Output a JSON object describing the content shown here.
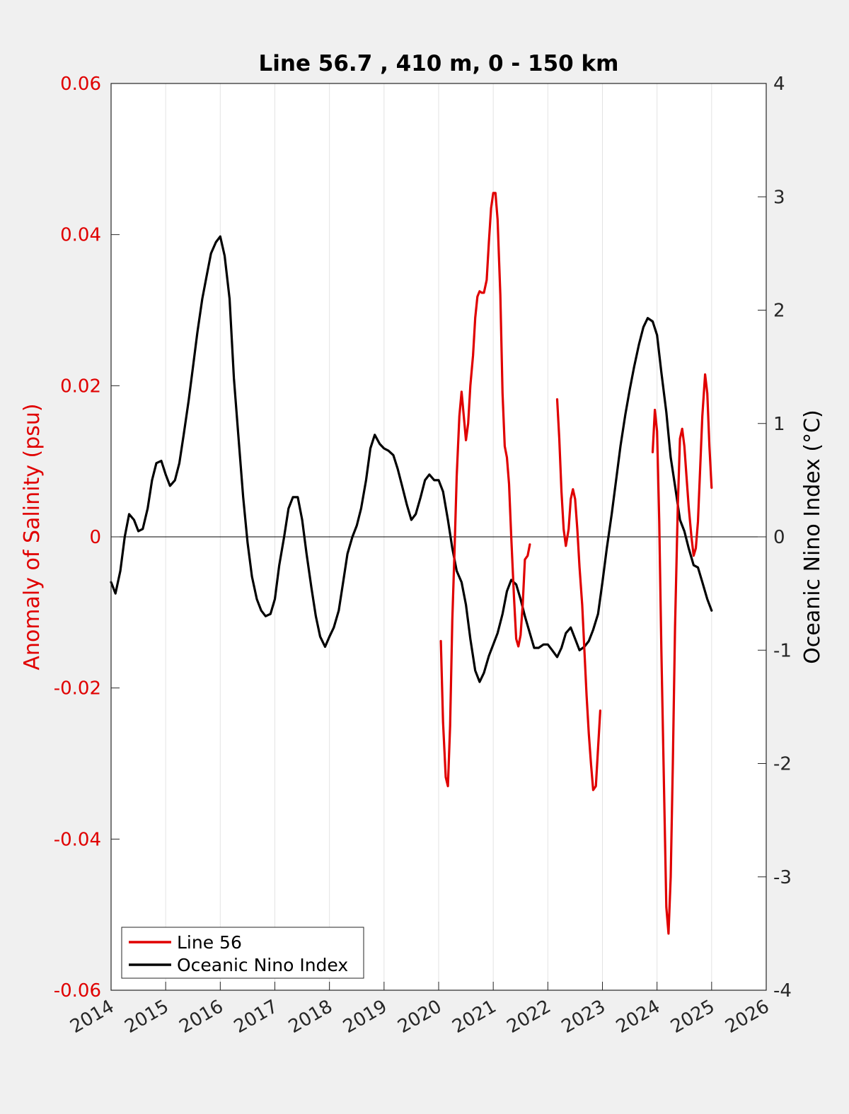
{
  "colors": {
    "background": "#f0f0f0",
    "plot_background": "#ffffff",
    "salinity": "#e00000",
    "oni": "#000000",
    "grid": "#e3e3e3"
  },
  "chart_data": {
    "type": "line",
    "title": "Line 56.7 , 410 m, 0 - 150 km",
    "xlim": [
      2014,
      2026
    ],
    "x_ticks": [
      "2014",
      "2015",
      "2016",
      "2017",
      "2018",
      "2019",
      "2020",
      "2021",
      "2022",
      "2023",
      "2024",
      "2025",
      "2026"
    ],
    "grid": "vertical",
    "zero_line": true,
    "legend_position": "bottom-left",
    "left_axis": {
      "label": "Anomaly of Salinity (psu)",
      "ylim": [
        -0.06,
        0.06
      ],
      "ticks": [
        "-0.06",
        "-0.04",
        "-0.02",
        "0",
        "0.02",
        "0.04",
        "0.06"
      ]
    },
    "right_axis": {
      "label": "Oceanic Nino Index (°C)",
      "ylim": [
        -4,
        4
      ],
      "ticks": [
        "-4",
        "-3",
        "-2",
        "-1",
        "0",
        "1",
        "2",
        "3",
        "4"
      ]
    },
    "series": [
      {
        "name": "Line 56",
        "axis": "left",
        "color": "#e00000",
        "segments": [
          [
            [
              2020.04,
              -0.0138
            ],
            [
              2020.08,
              -0.0245
            ],
            [
              2020.13,
              -0.0318
            ],
            [
              2020.17,
              -0.033
            ],
            [
              2020.21,
              -0.025
            ],
            [
              2020.25,
              -0.011
            ],
            [
              2020.29,
              -0.002
            ],
            [
              2020.33,
              0.008
            ],
            [
              2020.38,
              0.016
            ],
            [
              2020.42,
              0.0192
            ],
            [
              2020.46,
              0.016
            ],
            [
              2020.5,
              0.0128
            ],
            [
              2020.54,
              0.015
            ],
            [
              2020.58,
              0.02
            ],
            [
              2020.63,
              0.024
            ],
            [
              2020.67,
              0.029
            ],
            [
              2020.71,
              0.0318
            ],
            [
              2020.75,
              0.0325
            ],
            [
              2020.79,
              0.0323
            ],
            [
              2020.83,
              0.0323
            ],
            [
              2020.88,
              0.034
            ],
            [
              2020.92,
              0.039
            ],
            [
              2020.96,
              0.0435
            ],
            [
              2021.0,
              0.0455
            ],
            [
              2021.04,
              0.0455
            ],
            [
              2021.08,
              0.042
            ],
            [
              2021.13,
              0.032
            ],
            [
              2021.17,
              0.019
            ],
            [
              2021.21,
              0.012
            ],
            [
              2021.25,
              0.0105
            ],
            [
              2021.29,
              0.007
            ],
            [
              2021.33,
              0.0
            ],
            [
              2021.38,
              -0.008
            ],
            [
              2021.42,
              -0.0135
            ],
            [
              2021.46,
              -0.0145
            ],
            [
              2021.5,
              -0.013
            ],
            [
              2021.54,
              -0.009
            ],
            [
              2021.58,
              -0.003
            ],
            [
              2021.63,
              -0.0025
            ],
            [
              2021.67,
              -0.001
            ]
          ],
          [
            [
              2022.17,
              0.0182
            ],
            [
              2022.21,
              0.013
            ],
            [
              2022.25,
              0.006
            ],
            [
              2022.29,
              0.001
            ],
            [
              2022.33,
              -0.0012
            ],
            [
              2022.38,
              0.001
            ],
            [
              2022.42,
              0.005
            ],
            [
              2022.46,
              0.0063
            ],
            [
              2022.5,
              0.005
            ],
            [
              2022.54,
              0.001
            ],
            [
              2022.58,
              -0.004
            ],
            [
              2022.63,
              -0.009
            ],
            [
              2022.67,
              -0.015
            ],
            [
              2022.71,
              -0.021
            ],
            [
              2022.75,
              -0.026
            ],
            [
              2022.79,
              -0.03
            ],
            [
              2022.83,
              -0.0335
            ],
            [
              2022.88,
              -0.033
            ],
            [
              2022.92,
              -0.028
            ],
            [
              2022.96,
              -0.023
            ]
          ],
          [
            [
              2023.92,
              0.0112
            ],
            [
              2023.96,
              0.0168
            ],
            [
              2024.0,
              0.014
            ],
            [
              2024.04,
              0.002
            ],
            [
              2024.08,
              -0.015
            ],
            [
              2024.13,
              -0.034
            ],
            [
              2024.17,
              -0.049
            ],
            [
              2024.21,
              -0.0525
            ],
            [
              2024.25,
              -0.045
            ],
            [
              2024.29,
              -0.03
            ],
            [
              2024.33,
              -0.012
            ],
            [
              2024.38,
              0.004
            ],
            [
              2024.42,
              0.013
            ],
            [
              2024.46,
              0.0143
            ],
            [
              2024.5,
              0.012
            ],
            [
              2024.54,
              0.008
            ],
            [
              2024.58,
              0.004
            ],
            [
              2024.63,
              0.0
            ],
            [
              2024.67,
              -0.0025
            ],
            [
              2024.71,
              -0.0015
            ],
            [
              2024.75,
              0.002
            ],
            [
              2024.79,
              0.009
            ],
            [
              2024.83,
              0.016
            ],
            [
              2024.88,
              0.0215
            ],
            [
              2024.92,
              0.019
            ],
            [
              2024.96,
              0.012
            ],
            [
              2025.0,
              0.0065
            ]
          ]
        ]
      },
      {
        "name": "Oceanic Nino Index",
        "axis": "right",
        "color": "#000000",
        "segments": [
          [
            [
              2014.0,
              -0.4
            ],
            [
              2014.08,
              -0.5
            ],
            [
              2014.17,
              -0.3
            ],
            [
              2014.25,
              0.0
            ],
            [
              2014.33,
              0.2
            ],
            [
              2014.42,
              0.15
            ],
            [
              2014.5,
              0.05
            ],
            [
              2014.58,
              0.07
            ],
            [
              2014.67,
              0.25
            ],
            [
              2014.75,
              0.5
            ],
            [
              2014.83,
              0.65
            ],
            [
              2014.92,
              0.67
            ],
            [
              2015.0,
              0.55
            ],
            [
              2015.08,
              0.45
            ],
            [
              2015.17,
              0.5
            ],
            [
              2015.25,
              0.65
            ],
            [
              2015.33,
              0.9
            ],
            [
              2015.42,
              1.2
            ],
            [
              2015.5,
              1.5
            ],
            [
              2015.58,
              1.8
            ],
            [
              2015.67,
              2.1
            ],
            [
              2015.75,
              2.3
            ],
            [
              2015.83,
              2.5
            ],
            [
              2015.92,
              2.6
            ],
            [
              2016.0,
              2.65
            ],
            [
              2016.08,
              2.48
            ],
            [
              2016.17,
              2.1
            ],
            [
              2016.25,
              1.4
            ],
            [
              2016.33,
              0.9
            ],
            [
              2016.42,
              0.35
            ],
            [
              2016.5,
              -0.05
            ],
            [
              2016.58,
              -0.35
            ],
            [
              2016.67,
              -0.55
            ],
            [
              2016.75,
              -0.65
            ],
            [
              2016.83,
              -0.7
            ],
            [
              2016.92,
              -0.68
            ],
            [
              2017.0,
              -0.55
            ],
            [
              2017.08,
              -0.25
            ],
            [
              2017.17,
              0.0
            ],
            [
              2017.25,
              0.25
            ],
            [
              2017.33,
              0.35
            ],
            [
              2017.42,
              0.35
            ],
            [
              2017.5,
              0.15
            ],
            [
              2017.58,
              -0.15
            ],
            [
              2017.67,
              -0.45
            ],
            [
              2017.75,
              -0.7
            ],
            [
              2017.83,
              -0.88
            ],
            [
              2017.92,
              -0.97
            ],
            [
              2018.0,
              -0.88
            ],
            [
              2018.08,
              -0.8
            ],
            [
              2018.17,
              -0.65
            ],
            [
              2018.25,
              -0.4
            ],
            [
              2018.33,
              -0.15
            ],
            [
              2018.42,
              0.0
            ],
            [
              2018.5,
              0.1
            ],
            [
              2018.58,
              0.25
            ],
            [
              2018.67,
              0.5
            ],
            [
              2018.75,
              0.78
            ],
            [
              2018.83,
              0.9
            ],
            [
              2018.92,
              0.82
            ],
            [
              2019.0,
              0.78
            ],
            [
              2019.08,
              0.76
            ],
            [
              2019.17,
              0.72
            ],
            [
              2019.25,
              0.6
            ],
            [
              2019.33,
              0.45
            ],
            [
              2019.42,
              0.28
            ],
            [
              2019.5,
              0.15
            ],
            [
              2019.58,
              0.2
            ],
            [
              2019.67,
              0.35
            ],
            [
              2019.75,
              0.5
            ],
            [
              2019.83,
              0.55
            ],
            [
              2019.92,
              0.5
            ],
            [
              2020.0,
              0.5
            ],
            [
              2020.08,
              0.4
            ],
            [
              2020.17,
              0.15
            ],
            [
              2020.25,
              -0.1
            ],
            [
              2020.33,
              -0.3
            ],
            [
              2020.42,
              -0.4
            ],
            [
              2020.5,
              -0.6
            ],
            [
              2020.58,
              -0.9
            ],
            [
              2020.67,
              -1.18
            ],
            [
              2020.75,
              -1.28
            ],
            [
              2020.83,
              -1.2
            ],
            [
              2020.92,
              -1.05
            ],
            [
              2021.0,
              -0.95
            ],
            [
              2021.08,
              -0.85
            ],
            [
              2021.17,
              -0.68
            ],
            [
              2021.25,
              -0.48
            ],
            [
              2021.33,
              -0.38
            ],
            [
              2021.42,
              -0.42
            ],
            [
              2021.5,
              -0.55
            ],
            [
              2021.58,
              -0.7
            ],
            [
              2021.67,
              -0.85
            ],
            [
              2021.75,
              -0.98
            ],
            [
              2021.83,
              -0.98
            ],
            [
              2021.92,
              -0.95
            ],
            [
              2022.0,
              -0.95
            ],
            [
              2022.08,
              -1.0
            ],
            [
              2022.17,
              -1.06
            ],
            [
              2022.25,
              -0.98
            ],
            [
              2022.33,
              -0.85
            ],
            [
              2022.42,
              -0.8
            ],
            [
              2022.5,
              -0.9
            ],
            [
              2022.58,
              -1.0
            ],
            [
              2022.67,
              -0.97
            ],
            [
              2022.75,
              -0.92
            ],
            [
              2022.83,
              -0.82
            ],
            [
              2022.92,
              -0.68
            ],
            [
              2023.0,
              -0.4
            ],
            [
              2023.08,
              -0.1
            ],
            [
              2023.17,
              0.2
            ],
            [
              2023.25,
              0.5
            ],
            [
              2023.33,
              0.8
            ],
            [
              2023.42,
              1.08
            ],
            [
              2023.5,
              1.3
            ],
            [
              2023.58,
              1.5
            ],
            [
              2023.67,
              1.7
            ],
            [
              2023.75,
              1.85
            ],
            [
              2023.83,
              1.93
            ],
            [
              2023.92,
              1.9
            ],
            [
              2024.0,
              1.78
            ],
            [
              2024.08,
              1.45
            ],
            [
              2024.17,
              1.1
            ],
            [
              2024.25,
              0.7
            ],
            [
              2024.33,
              0.45
            ],
            [
              2024.42,
              0.15
            ],
            [
              2024.5,
              0.05
            ],
            [
              2024.58,
              -0.1
            ],
            [
              2024.67,
              -0.25
            ],
            [
              2024.75,
              -0.27
            ],
            [
              2024.83,
              -0.4
            ],
            [
              2024.92,
              -0.55
            ],
            [
              2025.0,
              -0.65
            ]
          ]
        ]
      }
    ]
  }
}
